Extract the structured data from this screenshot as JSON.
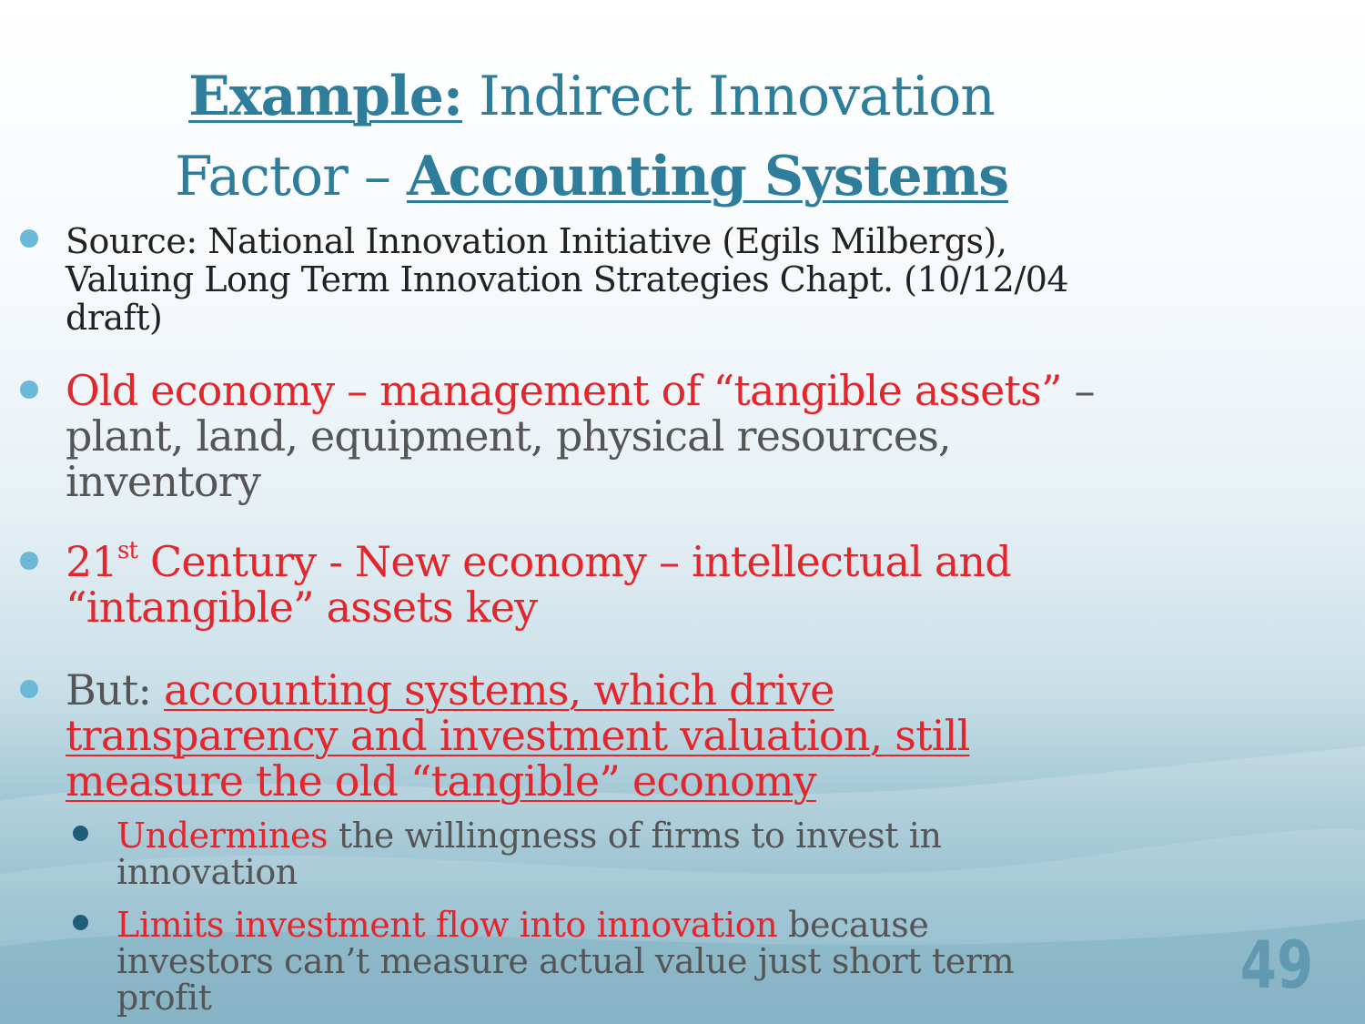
{
  "slide": {
    "title": {
      "part1_strong": "Example:",
      "part2": " Indirect Innovation Factor – ",
      "part3_strong": "Accounting Systems"
    },
    "bullets": {
      "source": "Source: National Innovation Initiative (Egils Milbergs), Valuing Long Term Innovation Strategies Chapt. (10/12/04 draft)",
      "old_economy_red": "Old economy – management of “tangible assets”",
      "old_economy_rest": " – plant, land, equipment, physical resources, inventory",
      "century_num": "21",
      "century_sup": "st",
      "century_rest": " Century - New economy – intellectual and “intangible” assets key",
      "but_prefix": "But: ",
      "but_underlined": "accounting systems, which drive transparency and investment valuation, still measure the old “tangible” economy"
    },
    "sub_bullets": {
      "undermines_red": "Undermines",
      "undermines_rest": " the willingness of firms to invest in innovation",
      "limits_red": "Limits investment flow into innovation",
      "limits_rest": " because investors can’t measure actual value just short term profit"
    },
    "page_number": "49",
    "colors": {
      "title": "#2e7d9a",
      "accent_red": "#e3262b",
      "bullet": "#6bb8d8",
      "sub_bullet": "#1f5d78"
    }
  }
}
